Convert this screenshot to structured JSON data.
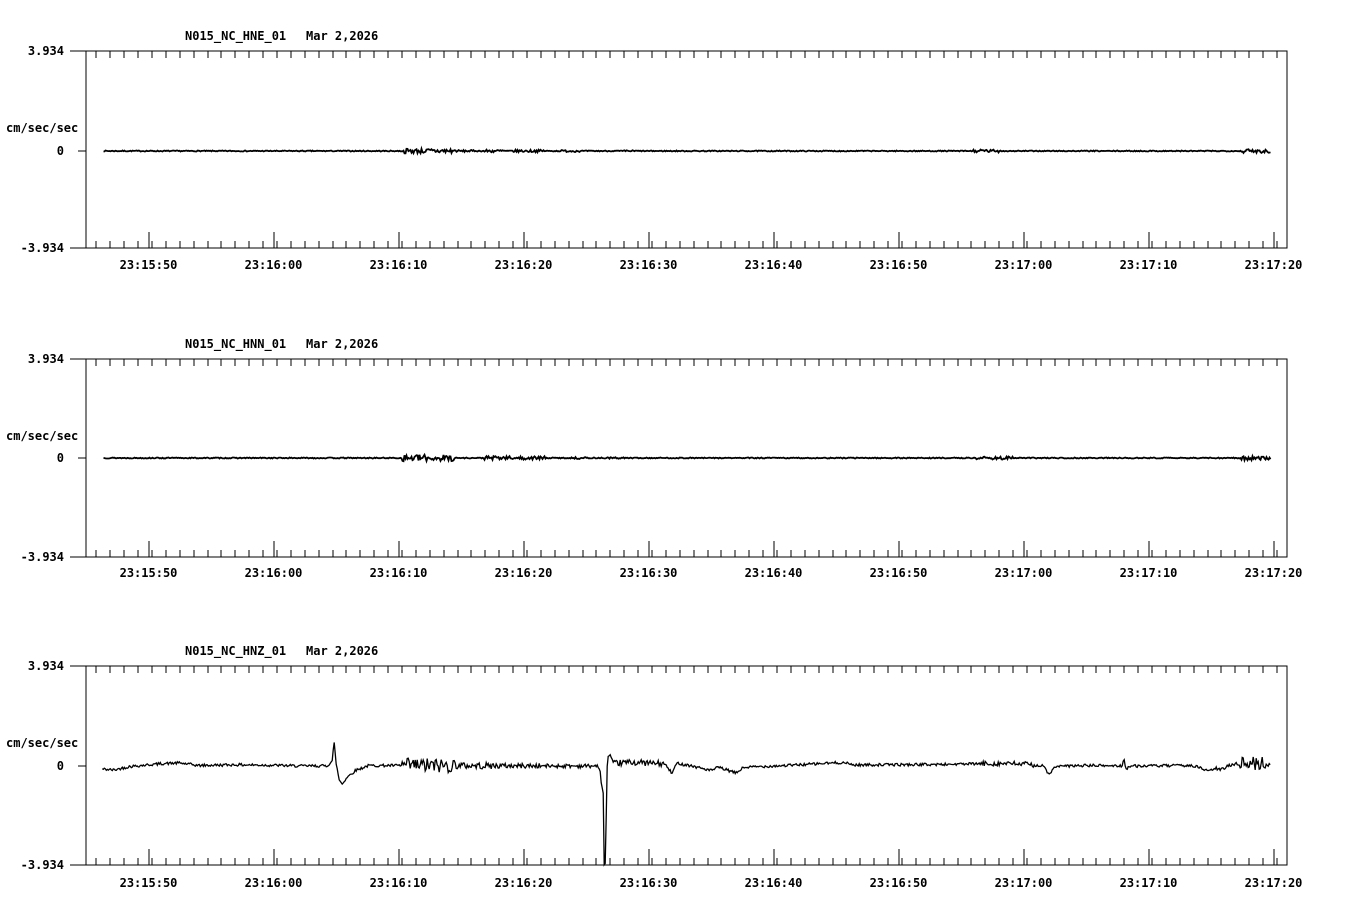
{
  "chart_data": {
    "type": "line",
    "kind": "three-component seismic acceleration waveform record",
    "date_label": "Mar 2,2026",
    "y_axis": {
      "unit_label": "cm/sec/sec",
      "max": 3.934,
      "min": -3.934,
      "zero": 0,
      "max_label": "3.934",
      "zero_label": "0",
      "min_label": "-3.934"
    },
    "x_axis": {
      "start_time": "23:15:45",
      "end_time": "23:17:21",
      "major_tick_interval_s": 10,
      "tick_labels": [
        "23:15:50",
        "23:16:00",
        "23:16:10",
        "23:16:20",
        "23:16:30",
        "23:16:40",
        "23:16:50",
        "23:17:00",
        "23:17:10",
        "23:17:20"
      ]
    },
    "panels": [
      {
        "id": "HNE",
        "title": "N015_NC_HNE_01",
        "date": "Mar 2,2026",
        "trace": {
          "start_offset_s": 1.4,
          "end_offset_s": 94.8,
          "base_amp": 0.02,
          "bursts": [
            [
              25.4,
              29.6,
              0.1
            ],
            [
              29.6,
              31.0,
              0.04
            ],
            [
              31.8,
              33.5,
              0.06
            ],
            [
              34.0,
              36.6,
              0.05
            ],
            [
              38.0,
              39.6,
              0.04
            ],
            [
              43.0,
              44.2,
              0.03
            ],
            [
              70.6,
              73.2,
              0.06
            ],
            [
              92.4,
              94.8,
              0.08
            ]
          ],
          "wander": [],
          "shapes": []
        }
      },
      {
        "id": "HNN",
        "title": "N015_NC_HNN_01",
        "date": "Mar 2,2026",
        "trace": {
          "start_offset_s": 1.4,
          "end_offset_s": 94.8,
          "base_amp": 0.02,
          "bursts": [
            [
              25.2,
              29.6,
              0.13
            ],
            [
              31.8,
              34.2,
              0.08
            ],
            [
              34.6,
              36.8,
              0.07
            ],
            [
              38.6,
              40.0,
              0.04
            ],
            [
              41.0,
              43.0,
              0.03
            ],
            [
              71.2,
              74.2,
              0.06
            ],
            [
              92.4,
              94.8,
              0.09
            ]
          ],
          "wander": [],
          "shapes": []
        }
      },
      {
        "id": "HNZ",
        "title": "N015_NC_HNZ_01",
        "date": "Mar 2,2026",
        "trace": {
          "start_offset_s": 1.3,
          "end_offset_s": 94.8,
          "base_amp": 0.055,
          "bursts": [
            [
              25.2,
              29.6,
              0.3
            ],
            [
              29.6,
              33.0,
              0.13
            ],
            [
              33.0,
              36.5,
              0.1
            ],
            [
              36.5,
              40.6,
              0.08
            ],
            [
              42.2,
              46.3,
              0.12
            ],
            [
              47.7,
              49.5,
              0.06
            ],
            [
              71.5,
              75.8,
              0.1
            ],
            [
              90.0,
              92.3,
              0.07
            ],
            [
              92.3,
              94.8,
              0.28
            ]
          ],
          "wander": [
            [
              1.3,
              -0.12
            ],
            [
              2.2,
              -0.16
            ],
            [
              3.5,
              -0.02
            ],
            [
              6.2,
              0.1
            ],
            [
              7.5,
              0.12
            ],
            [
              9.0,
              0.02
            ],
            [
              12.0,
              0.05
            ],
            [
              15.0,
              0.03
            ],
            [
              17.0,
              0.0
            ],
            [
              24.0,
              0.02
            ],
            [
              40.6,
              0.0
            ],
            [
              42.2,
              0.1
            ],
            [
              43.5,
              0.15
            ],
            [
              45.0,
              0.12
            ],
            [
              46.2,
              0.08
            ],
            [
              48.0,
              0.06
            ],
            [
              50.0,
              -0.18
            ],
            [
              50.6,
              -0.05
            ],
            [
              52.0,
              -0.28
            ],
            [
              52.6,
              -0.06
            ],
            [
              54.0,
              -0.02
            ],
            [
              56.0,
              0.02
            ],
            [
              60.5,
              0.14
            ],
            [
              61.5,
              0.04
            ],
            [
              63.0,
              0.05
            ],
            [
              68.0,
              0.06
            ],
            [
              73.0,
              0.1
            ],
            [
              75.0,
              0.08
            ],
            [
              76.6,
              0.0
            ],
            [
              77.0,
              -0.33
            ],
            [
              77.6,
              -0.02
            ],
            [
              80.0,
              0.02
            ],
            [
              84.0,
              0.0
            ],
            [
              88.5,
              0.02
            ],
            [
              89.3,
              -0.1
            ],
            [
              89.8,
              -0.22
            ],
            [
              90.3,
              -0.08
            ],
            [
              90.8,
              -0.16
            ],
            [
              91.6,
              0.06
            ],
            [
              92.2,
              0.1
            ],
            [
              94.8,
              0.08
            ]
          ],
          "shapes": [
            [
              [
                19.3,
                0
              ],
              [
                19.7,
                0.2
              ],
              [
                19.85,
                0.95
              ],
              [
                20.0,
                0.15
              ],
              [
                20.25,
                -0.55
              ],
              [
                20.5,
                -0.72
              ],
              [
                20.9,
                -0.45
              ],
              [
                21.6,
                -0.18
              ],
              [
                22.6,
                0
              ]
            ],
            [
              [
                40.9,
                0
              ],
              [
                41.15,
                -0.3
              ],
              [
                41.28,
                -1.05
              ],
              [
                41.36,
                -0.25
              ],
              [
                41.44,
                -3.93
              ],
              [
                41.58,
                -3.93
              ],
              [
                41.66,
                -0.3
              ],
              [
                41.78,
                0.3
              ],
              [
                41.95,
                0.33
              ],
              [
                42.15,
                0.05
              ]
            ],
            [
              [
                46.3,
                0
              ],
              [
                46.6,
                -0.18
              ],
              [
                46.9,
                -0.38
              ],
              [
                47.15,
                -0.05
              ],
              [
                47.4,
                0.06
              ],
              [
                47.7,
                0
              ]
            ],
            [
              [
                82.9,
                0
              ],
              [
                83.05,
                0.3
              ],
              [
                83.2,
                -0.12
              ],
              [
                83.5,
                -0.02
              ],
              [
                83.8,
                0
              ]
            ]
          ]
        }
      }
    ]
  }
}
